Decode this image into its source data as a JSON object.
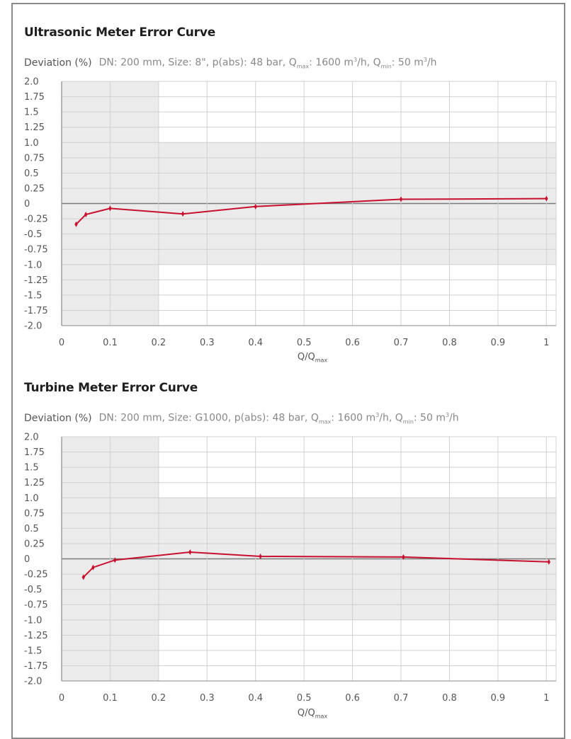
{
  "chart_data": [
    {
      "type": "line",
      "title": "Ultrasonic Meter Error Curve",
      "ylabel": "Deviation (%)",
      "subtitle": "DN: 200 mm, Size: 8\", p(abs): 48 bar, Q_max: 1600 m³/h, Q_min: 50 m³/h",
      "subtitle_parts": {
        "a": "DN: 200 mm, Size: 8\", p(abs): 48 bar, Q",
        "a_sub": "max",
        "b": ": 1600 m",
        "b_sup": "3",
        "c": "/h, Q",
        "c_sub": "min",
        "d": ": 50 m",
        "d_sup": "3",
        "e": "/h"
      },
      "xlabel": "Q/Q",
      "xlabel_sub": "max",
      "xlim": [
        0,
        1.02
      ],
      "ylim": [
        -2.0,
        2.0
      ],
      "xticks": [
        "0",
        "0.1",
        "0.2",
        "0.3",
        "0.4",
        "0.5",
        "0.6",
        "0.7",
        "0.8",
        "0.9",
        "1"
      ],
      "yticks": [
        "2.0",
        "1.75",
        "1.5",
        "1.25",
        "1.0",
        "0.75",
        "0.5",
        "0.25",
        "0",
        "-0.25",
        "-0.5",
        "-0.75",
        "-1.0",
        "-1.25",
        "-1.5",
        "-1.75",
        "-2.0"
      ],
      "tolerance_band": {
        "inner_x_max": 0.2,
        "low_flow_limit": 2.0,
        "high_flow_limit": 1.0
      },
      "series": [
        {
          "color": "#c8102e",
          "points": [
            [
              0.03,
              -0.34
            ],
            [
              0.05,
              -0.18
            ],
            [
              0.1,
              -0.08
            ],
            [
              0.25,
              -0.17
            ],
            [
              0.4,
              -0.05
            ],
            [
              0.7,
              0.07
            ],
            [
              1.0,
              0.08
            ]
          ]
        }
      ]
    },
    {
      "type": "line",
      "title": "Turbine Meter Error Curve",
      "ylabel": "Deviation (%)",
      "subtitle": "DN: 200 mm, Size: G1000, p(abs): 48 bar, Q_max: 1600 m³/h, Q_min: 50 m³/h",
      "subtitle_parts": {
        "a": "DN: 200 mm, Size: G1000, p(abs): 48 bar, Q",
        "a_sub": "max",
        "b": ": 1600 m",
        "b_sup": "3",
        "c": "/h, Q",
        "c_sub": "min",
        "d": ": 50 m",
        "d_sup": "3",
        "e": "/h"
      },
      "xlabel": "Q/Q",
      "xlabel_sub": "max",
      "xlim": [
        0,
        1.02
      ],
      "ylim": [
        -2.0,
        2.0
      ],
      "xticks": [
        "0",
        "0.1",
        "0.2",
        "0.3",
        "0.4",
        "0.5",
        "0.6",
        "0.7",
        "0.8",
        "0.9",
        "1"
      ],
      "yticks": [
        "2.0",
        "1.75",
        "1.5",
        "1.25",
        "1.0",
        "0.75",
        "0.5",
        "0.25",
        "0",
        "-0.25",
        "-0.5",
        "-0.75",
        "-1.0",
        "-1.25",
        "-1.5",
        "-1.75",
        "-2.0"
      ],
      "tolerance_band": {
        "inner_x_max": 0.2,
        "low_flow_limit": 2.0,
        "high_flow_limit": 1.0
      },
      "series": [
        {
          "color": "#c8102e",
          "points": [
            [
              0.045,
              -0.3
            ],
            [
              0.065,
              -0.14
            ],
            [
              0.11,
              -0.02
            ],
            [
              0.265,
              0.11
            ],
            [
              0.41,
              0.04
            ],
            [
              0.705,
              0.03
            ],
            [
              1.005,
              -0.05
            ]
          ]
        }
      ]
    }
  ]
}
